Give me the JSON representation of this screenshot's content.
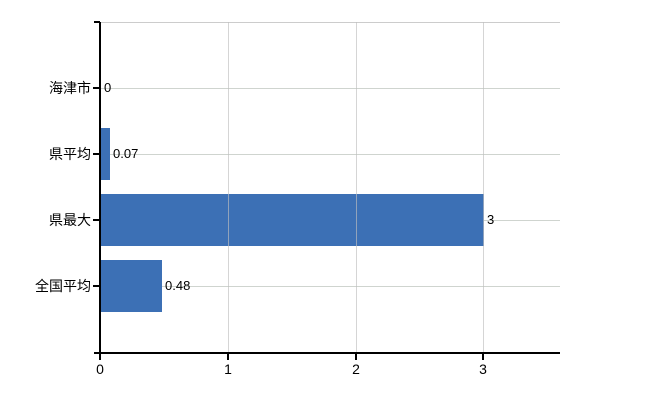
{
  "chart_data": {
    "type": "bar",
    "orientation": "horizontal",
    "title": "",
    "xlabel": "",
    "ylabel": "",
    "categories": [
      "海津市",
      "県平均",
      "県最大",
      "全国平均"
    ],
    "values": [
      0,
      0.07,
      3,
      0.48
    ],
    "value_labels": [
      "0",
      "0.07",
      "3",
      "0.48"
    ],
    "x_ticks": [
      0,
      1,
      2,
      3
    ],
    "x_tick_labels": [
      "0",
      "1",
      "2",
      "3"
    ],
    "xlim": [
      0,
      3.6
    ],
    "grid": true,
    "legend": "none",
    "bar_color": "#3c70b5",
    "gridline_color": "#cccccc",
    "axis_color": "#000000",
    "text_color": "#000000",
    "background_color": "#ffffff"
  }
}
